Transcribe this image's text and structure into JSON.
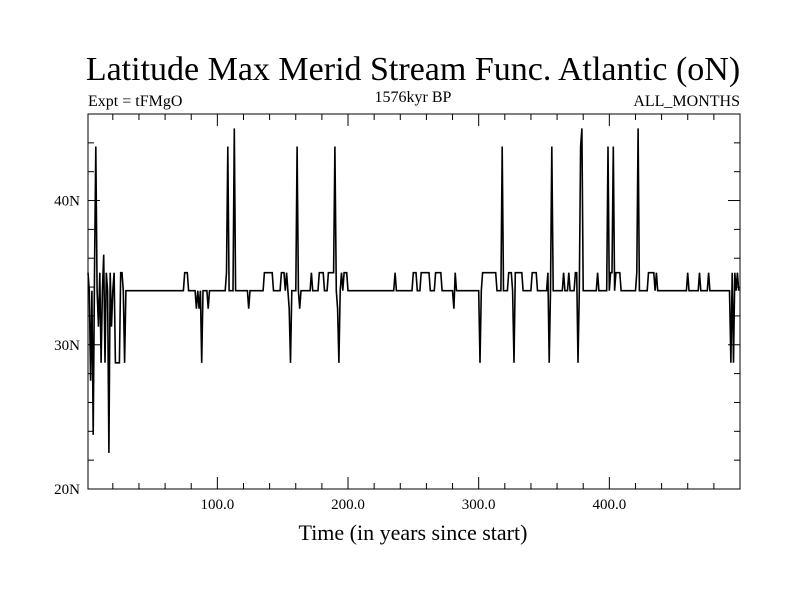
{
  "chart_data": {
    "type": "line",
    "title": "Latitude Max Merid Stream Func. Atlantic (oN)",
    "subtitle_left": "Expt = tFMgO",
    "subtitle_center": "1576kyr BP",
    "subtitle_right": "ALL_MONTHS",
    "xlabel": "Time (in years since start)",
    "ylabel": "",
    "xlim": [
      1,
      500
    ],
    "ylim": [
      20,
      46
    ],
    "x_ticks": [
      100,
      200,
      300,
      400
    ],
    "x_tick_labels": [
      "100.0",
      "200.0",
      "300.0",
      "400.0"
    ],
    "y_ticks": [
      20,
      30,
      40
    ],
    "y_tick_labels": [
      "20N",
      "30N",
      "40N"
    ],
    "baseline": 33.75,
    "series": [
      {
        "values": [
          [
            1,
            35
          ],
          [
            2,
            33.75
          ],
          [
            3,
            27.5
          ],
          [
            4,
            33.75
          ],
          [
            5,
            23.75
          ],
          [
            6,
            35
          ],
          [
            7,
            43.75
          ],
          [
            8,
            33.75
          ],
          [
            9,
            31.25
          ],
          [
            10,
            35
          ],
          [
            11,
            28.75
          ],
          [
            12,
            33.75
          ],
          [
            13,
            36.25
          ],
          [
            14,
            28.75
          ],
          [
            15,
            35
          ],
          [
            16,
            33.75
          ],
          [
            17,
            22.5
          ],
          [
            18,
            35
          ],
          [
            19,
            31.25
          ],
          [
            20,
            33.75
          ],
          [
            21,
            35
          ],
          [
            22,
            28.75
          ],
          [
            23,
            28.75
          ],
          [
            25,
            28.75
          ],
          [
            26,
            35
          ],
          [
            27,
            35
          ],
          [
            28,
            33.75
          ],
          [
            29,
            28.75
          ],
          [
            30,
            33.75
          ],
          [
            74,
            33.75
          ],
          [
            75,
            35
          ],
          [
            77,
            35
          ],
          [
            78,
            33.75
          ],
          [
            83,
            33.75
          ],
          [
            84,
            32.5
          ],
          [
            85,
            33.75
          ],
          [
            86,
            32.5
          ],
          [
            87,
            33.75
          ],
          [
            88,
            28.75
          ],
          [
            89,
            33.75
          ],
          [
            92,
            33.75
          ],
          [
            93,
            32.5
          ],
          [
            94,
            33.75
          ],
          [
            106,
            33.75
          ],
          [
            107,
            35
          ],
          [
            108,
            43.75
          ],
          [
            109,
            33.75
          ],
          [
            112,
            33.75
          ],
          [
            113,
            45
          ],
          [
            114,
            33.75
          ],
          [
            123,
            33.75
          ],
          [
            124,
            32.5
          ],
          [
            125,
            33.75
          ],
          [
            135,
            33.75
          ],
          [
            136,
            35
          ],
          [
            142,
            35
          ],
          [
            143,
            33.75
          ],
          [
            148,
            33.75
          ],
          [
            149,
            35
          ],
          [
            151,
            35
          ],
          [
            152,
            33.75
          ],
          [
            153,
            35
          ],
          [
            154,
            33.75
          ],
          [
            155,
            32.5
          ],
          [
            156,
            28.75
          ],
          [
            157,
            33.75
          ],
          [
            160,
            33.75
          ],
          [
            161,
            43.75
          ],
          [
            162,
            33.75
          ],
          [
            163,
            32.5
          ],
          [
            164,
            33.75
          ],
          [
            171,
            33.75
          ],
          [
            172,
            35
          ],
          [
            173,
            33.75
          ],
          [
            177,
            33.75
          ],
          [
            178,
            35
          ],
          [
            181,
            35
          ],
          [
            182,
            33.75
          ],
          [
            184,
            33.75
          ],
          [
            185,
            35
          ],
          [
            189,
            35
          ],
          [
            190,
            43.75
          ],
          [
            191,
            33.75
          ],
          [
            192,
            32.5
          ],
          [
            193,
            28.75
          ],
          [
            194,
            33.75
          ],
          [
            195,
            35
          ],
          [
            196,
            33.75
          ],
          [
            197,
            35
          ],
          [
            199,
            35
          ],
          [
            200,
            33.75
          ],
          [
            235,
            33.75
          ],
          [
            236,
            35
          ],
          [
            237,
            33.75
          ],
          [
            249,
            33.75
          ],
          [
            250,
            35
          ],
          [
            252,
            35
          ],
          [
            253,
            33.75
          ],
          [
            255,
            33.75
          ],
          [
            256,
            35
          ],
          [
            262,
            35
          ],
          [
            263,
            33.75
          ],
          [
            266,
            33.75
          ],
          [
            267,
            35
          ],
          [
            271,
            35
          ],
          [
            272,
            33.75
          ],
          [
            280,
            33.75
          ],
          [
            281,
            32.5
          ],
          [
            282,
            35
          ],
          [
            283,
            33.75
          ],
          [
            300,
            33.75
          ],
          [
            301,
            28.75
          ],
          [
            302,
            33.75
          ],
          [
            303,
            35
          ],
          [
            313,
            35
          ],
          [
            314,
            33.75
          ],
          [
            317,
            33.75
          ],
          [
            318,
            43.75
          ],
          [
            319,
            33.75
          ],
          [
            322,
            33.75
          ],
          [
            323,
            35
          ],
          [
            325,
            35
          ],
          [
            326,
            33.75
          ],
          [
            327,
            28.75
          ],
          [
            328,
            35
          ],
          [
            333,
            35
          ],
          [
            334,
            33.75
          ],
          [
            340,
            33.75
          ],
          [
            341,
            35
          ],
          [
            344,
            35
          ],
          [
            345,
            33.75
          ],
          [
            352,
            33.75
          ],
          [
            353,
            35
          ],
          [
            354,
            28.75
          ],
          [
            355,
            33.75
          ],
          [
            356,
            43.75
          ],
          [
            357,
            33.75
          ],
          [
            364,
            33.75
          ],
          [
            365,
            35
          ],
          [
            366,
            33.75
          ],
          [
            368,
            33.75
          ],
          [
            369,
            35
          ],
          [
            370,
            33.75
          ],
          [
            373,
            33.75
          ],
          [
            374,
            35
          ],
          [
            375,
            35
          ],
          [
            376,
            28.75
          ],
          [
            377,
            33.75
          ],
          [
            378,
            43.75
          ],
          [
            379,
            45
          ],
          [
            380,
            33.75
          ],
          [
            390,
            33.75
          ],
          [
            391,
            35
          ],
          [
            392,
            33.75
          ],
          [
            398,
            33.75
          ],
          [
            399,
            43.75
          ],
          [
            400,
            33.75
          ],
          [
            401,
            35
          ],
          [
            402,
            35
          ],
          [
            403,
            43.75
          ],
          [
            404,
            33.75
          ],
          [
            405,
            35
          ],
          [
            408,
            35
          ],
          [
            409,
            33.75
          ],
          [
            420,
            33.75
          ],
          [
            421,
            35
          ],
          [
            422,
            45
          ],
          [
            423,
            33.75
          ],
          [
            429,
            33.75
          ],
          [
            430,
            35
          ],
          [
            434,
            35
          ],
          [
            435,
            33.75
          ],
          [
            436,
            35
          ],
          [
            437,
            33.75
          ],
          [
            459,
            33.75
          ],
          [
            460,
            35
          ],
          [
            461,
            33.75
          ],
          [
            468,
            33.75
          ],
          [
            469,
            35
          ],
          [
            470,
            33.75
          ],
          [
            475,
            33.75
          ],
          [
            476,
            35
          ],
          [
            477,
            33.75
          ],
          [
            492,
            33.75
          ],
          [
            493,
            28.75
          ],
          [
            494,
            35
          ],
          [
            495,
            28.75
          ],
          [
            496,
            35
          ],
          [
            497,
            33.75
          ],
          [
            498,
            35
          ],
          [
            499,
            33.75
          ]
        ]
      }
    ]
  }
}
